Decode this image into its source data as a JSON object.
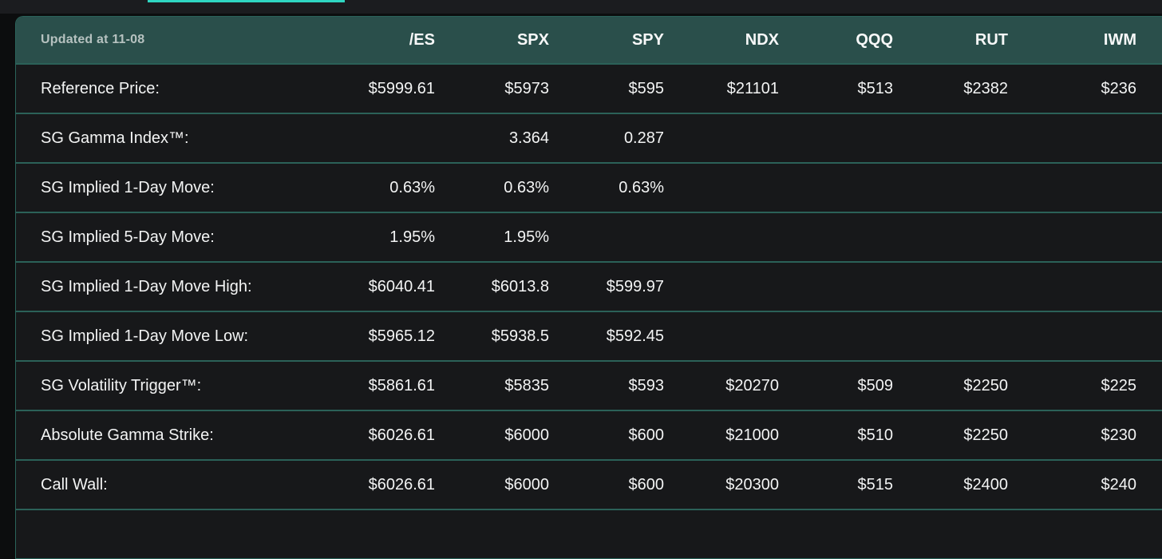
{
  "top_nav": {
    "active_tab_indicator_color": "#2fd6c2"
  },
  "table": {
    "updated_label": "Updated at 11-08",
    "columns": [
      "/ES",
      "SPX",
      "SPY",
      "NDX",
      "QQQ",
      "RUT",
      "IWM"
    ],
    "rows": [
      {
        "label": "Reference Price:",
        "values": [
          "$5999.61",
          "$5973",
          "$595",
          "$21101",
          "$513",
          "$2382",
          "$236"
        ]
      },
      {
        "label": "SG Gamma Index™:",
        "values": [
          "",
          "3.364",
          "0.287",
          "",
          "",
          "",
          ""
        ]
      },
      {
        "label": "SG Implied 1-Day Move:",
        "values": [
          "0.63%",
          "0.63%",
          "0.63%",
          "",
          "",
          "",
          ""
        ]
      },
      {
        "label": "SG Implied 5-Day Move:",
        "values": [
          "1.95%",
          "1.95%",
          "",
          "",
          "",
          "",
          ""
        ]
      },
      {
        "label": "SG Implied 1-Day Move High:",
        "values": [
          "$6040.41",
          "$6013.8",
          "$599.97",
          "",
          "",
          "",
          ""
        ]
      },
      {
        "label": "SG Implied 1-Day Move Low:",
        "values": [
          "$5965.12",
          "$5938.5",
          "$592.45",
          "",
          "",
          "",
          ""
        ]
      },
      {
        "label": "SG Volatility Trigger™:",
        "values": [
          "$5861.61",
          "$5835",
          "$593",
          "$20270",
          "$509",
          "$2250",
          "$225"
        ]
      },
      {
        "label": "Absolute Gamma Strike:",
        "values": [
          "$6026.61",
          "$6000",
          "$600",
          "$21000",
          "$510",
          "$2250",
          "$230"
        ]
      },
      {
        "label": "Call Wall:",
        "values": [
          "$6026.61",
          "$6000",
          "$600",
          "$20300",
          "$515",
          "$2400",
          "$240"
        ]
      }
    ]
  },
  "colors": {
    "header_background": "#2a4f4b",
    "row_background": "#17181a",
    "row_separator": "#2b6158",
    "accent_teal": "#2fd6c2",
    "page_background": "#0c0d0e",
    "top_strip_background": "#1b1c1f",
    "updated_text": "#b6c2c0",
    "cell_text": "#f3f4f4"
  }
}
